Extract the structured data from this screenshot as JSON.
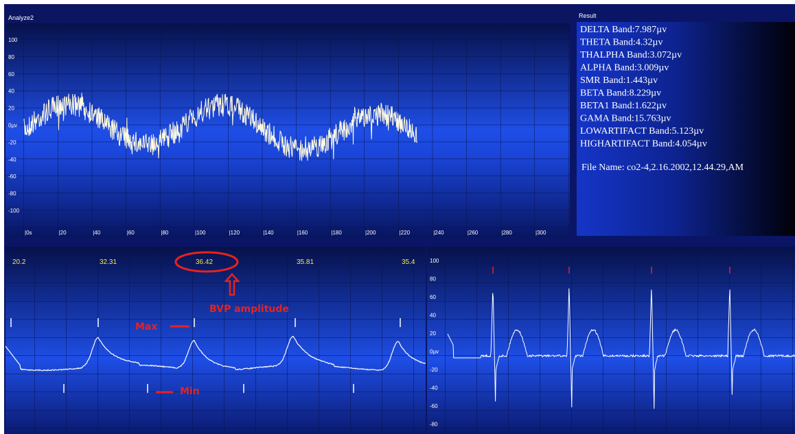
{
  "window_title": "Analyze2",
  "eeg_panel": {
    "y_labels": [
      "100",
      "80",
      "60",
      "40",
      "20",
      "0µv",
      "-20",
      "-40",
      "-60",
      "-80",
      "-100"
    ],
    "x_labels": [
      "|0s",
      "|20",
      "|40",
      "|60",
      "|80",
      "|100",
      "|120",
      "|140",
      "|160",
      "|180",
      "|200",
      "|220",
      "|240",
      "|260",
      "|280",
      "|300"
    ]
  },
  "result": {
    "title": "Result",
    "lines": [
      "DELTA Band:7.987µv",
      "THETA Band:4.32µv",
      "THALPHA Band:3.072µv",
      "ALPHA Band:3.009µv",
      "SMR Band:1.443µv",
      "BETA Band:8.229µv",
      "BETA1 Band:1.622µv",
      "GAMA Band:15.763µv",
      "LOWARTIFACT Band:5.123µv",
      "HIGHARTIFACT Band:4.054µv"
    ],
    "file_name": "File Name: co2-4,2.16.2002,12.44.29,AM"
  },
  "bvp_panel": {
    "amplitudes": [
      "20.2",
      "32.31",
      "36.42",
      "35.81",
      "35.4"
    ],
    "annotation": "BVP amplitude",
    "max_label": "Max",
    "min_label": "Min"
  },
  "ecg_panel": {
    "y_labels": [
      "100",
      "80",
      "60",
      "40",
      "20",
      "0µv",
      "-20",
      "-40",
      "-60",
      "-80"
    ]
  }
}
